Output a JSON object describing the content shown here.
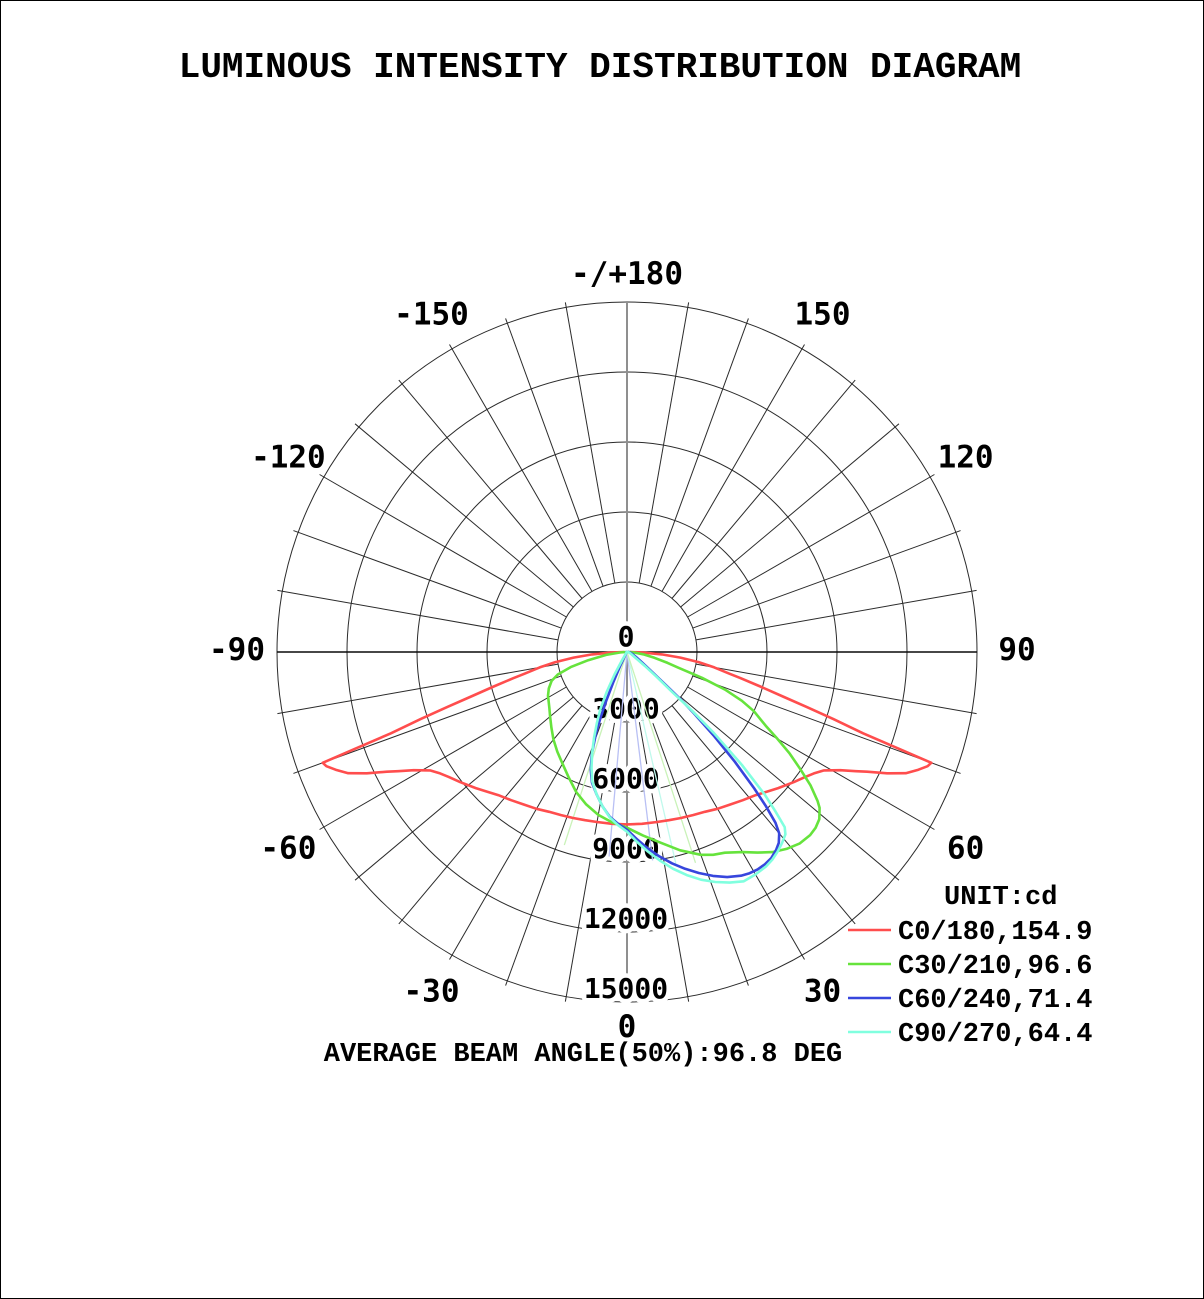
{
  "title": "LUMINOUS INTENSITY DISTRIBUTION DIAGRAM",
  "footer": "AVERAGE BEAM ANGLE(50%):96.8 DEG",
  "legend": {
    "unit": "UNIT:cd",
    "rows": [
      {
        "label": "C0/180,154.9",
        "color": "#ff4d4d"
      },
      {
        "label": "C30/210,96.6",
        "color": "#66e33c"
      },
      {
        "label": "C60/240,71.4",
        "color": "#3746dd"
      },
      {
        "label": "C90/270,64.4",
        "color": "#80ffdf"
      }
    ]
  },
  "chart_data": {
    "type": "polar_photometric",
    "title": "LUMINOUS INTENSITY DISTRIBUTION DIAGRAM",
    "unit": "cd",
    "average_beam_angle_50pct_deg": 96.8,
    "radial_ticks_cd": [
      0,
      3000,
      6000,
      9000,
      12000,
      15000
    ],
    "radial_max_cd": 15000,
    "grid_angle_step_deg": 10,
    "angle_labels": [
      {
        "text": "0",
        "deg": 0
      },
      {
        "text": "30",
        "deg": 30
      },
      {
        "text": "-30",
        "deg": -30
      },
      {
        "text": "60",
        "deg": 60
      },
      {
        "text": "-60",
        "deg": -60
      },
      {
        "text": "90",
        "deg": 90
      },
      {
        "text": "-90",
        "deg": -90
      },
      {
        "text": "120",
        "deg": 120
      },
      {
        "text": "-120",
        "deg": -120
      },
      {
        "text": "150",
        "deg": 150
      },
      {
        "text": "-150",
        "deg": -150
      },
      {
        "text": "-/+180",
        "deg": 180
      }
    ],
    "series": [
      {
        "name": "C0/180",
        "beam_angle_50pct_deg": 154.9,
        "color": "#ff4d4d",
        "points": [
          [
            -90,
            150
          ],
          [
            -88,
            700
          ],
          [
            -86,
            1500
          ],
          [
            -84,
            2300
          ],
          [
            -82,
            3100
          ],
          [
            -80,
            3800
          ],
          [
            -78,
            4500
          ],
          [
            -77,
            5000
          ],
          [
            -75.5,
            5900
          ],
          [
            -74,
            7000
          ],
          [
            -73,
            8050
          ],
          [
            -72,
            9300
          ],
          [
            -71,
            10700
          ],
          [
            -70.4,
            12400
          ],
          [
            -70,
            13880
          ],
          [
            -69.2,
            13780
          ],
          [
            -68,
            13470
          ],
          [
            -66.5,
            13030
          ],
          [
            -65,
            12300
          ],
          [
            -63.5,
            11500
          ],
          [
            -62.5,
            11060
          ],
          [
            -61,
            10450
          ],
          [
            -59,
            9850
          ],
          [
            -57,
            9550
          ],
          [
            -55,
            9330
          ],
          [
            -52,
            9060
          ],
          [
            -48,
            8720
          ],
          [
            -45,
            8470
          ],
          [
            -42,
            8250
          ],
          [
            -38,
            8060
          ],
          [
            -34,
            7890
          ],
          [
            -30,
            7760
          ],
          [
            -26,
            7620
          ],
          [
            -22,
            7540
          ],
          [
            -18,
            7480
          ],
          [
            -14,
            7430
          ],
          [
            -10,
            7400
          ],
          [
            -5,
            7390
          ],
          [
            0,
            7390
          ],
          [
            5,
            7390
          ],
          [
            10,
            7400
          ],
          [
            14,
            7430
          ],
          [
            18,
            7480
          ],
          [
            22,
            7540
          ],
          [
            26,
            7620
          ],
          [
            30,
            7760
          ],
          [
            34,
            7890
          ],
          [
            38,
            8060
          ],
          [
            42,
            8250
          ],
          [
            45,
            8470
          ],
          [
            48,
            8720
          ],
          [
            52,
            9060
          ],
          [
            55,
            9330
          ],
          [
            57,
            9550
          ],
          [
            59,
            9850
          ],
          [
            61,
            10450
          ],
          [
            62.5,
            11060
          ],
          [
            63.5,
            11500
          ],
          [
            65,
            12300
          ],
          [
            66.5,
            13030
          ],
          [
            68,
            13470
          ],
          [
            69.2,
            13780
          ],
          [
            70,
            13880
          ],
          [
            70.4,
            12400
          ],
          [
            71,
            10700
          ],
          [
            72,
            9300
          ],
          [
            73,
            8050
          ],
          [
            74,
            7000
          ],
          [
            75.5,
            5900
          ],
          [
            77,
            5000
          ],
          [
            78,
            4500
          ],
          [
            80,
            3800
          ],
          [
            82,
            3100
          ],
          [
            84,
            2300
          ],
          [
            86,
            1500
          ],
          [
            88,
            700
          ],
          [
            90,
            150
          ]
        ]
      },
      {
        "name": "C30/210",
        "beam_angle_50pct_deg": 96.6,
        "color": "#66e33c",
        "points": [
          [
            -90,
            80
          ],
          [
            -86,
            300
          ],
          [
            -82,
            900
          ],
          [
            -78,
            1700
          ],
          [
            -75,
            2500
          ],
          [
            -72,
            3120
          ],
          [
            -69,
            3460
          ],
          [
            -65,
            3700
          ],
          [
            -61,
            3870
          ],
          [
            -58,
            3960
          ],
          [
            -54,
            4110
          ],
          [
            -50,
            4300
          ],
          [
            -45,
            4580
          ],
          [
            -40,
            4900
          ],
          [
            -35,
            5210
          ],
          [
            -30,
            5530
          ],
          [
            -25,
            5920
          ],
          [
            -20,
            6380
          ],
          [
            -15,
            6760
          ],
          [
            -10,
            7090
          ],
          [
            -5,
            7330
          ],
          [
            0,
            7530
          ],
          [
            5,
            7900
          ],
          [
            10,
            8300
          ],
          [
            15,
            8800
          ],
          [
            20,
            9250
          ],
          [
            23,
            9440
          ],
          [
            26,
            9570
          ],
          [
            30,
            9900
          ],
          [
            33,
            10250
          ],
          [
            36,
            10600
          ],
          [
            39,
            10860
          ],
          [
            42,
            11050
          ],
          [
            45,
            11100
          ],
          [
            47,
            11050
          ],
          [
            49,
            10920
          ],
          [
            51,
            10620
          ],
          [
            52,
            10360
          ],
          [
            54,
            9720
          ],
          [
            56,
            8950
          ],
          [
            58,
            8220
          ],
          [
            60,
            7450
          ],
          [
            62,
            6730
          ],
          [
            65,
            6000
          ],
          [
            67,
            5350
          ],
          [
            69,
            4500
          ],
          [
            71,
            3400
          ],
          [
            73,
            2300
          ],
          [
            75,
            1800
          ],
          [
            78,
            1200
          ],
          [
            82,
            700
          ],
          [
            86,
            300
          ],
          [
            90,
            80
          ]
        ]
      },
      {
        "name": "C60/240",
        "beam_angle_50pct_deg": 71.4,
        "color": "#3746dd",
        "points": [
          [
            -90,
            20
          ],
          [
            -45,
            50
          ],
          [
            -32,
            90
          ],
          [
            -27,
            300
          ],
          [
            -26,
            700
          ],
          [
            -24.5,
            1400
          ],
          [
            -23,
            2300
          ],
          [
            -22,
            3000
          ],
          [
            -21,
            3700
          ],
          [
            -19,
            4650
          ],
          [
            -17,
            5300
          ],
          [
            -15,
            5800
          ],
          [
            -12,
            6250
          ],
          [
            -9,
            6700
          ],
          [
            -6,
            7100
          ],
          [
            -3,
            7370
          ],
          [
            0,
            7620
          ],
          [
            3,
            8030
          ],
          [
            6,
            8460
          ],
          [
            9,
            8870
          ],
          [
            12,
            9260
          ],
          [
            15,
            9620
          ],
          [
            18,
            9960
          ],
          [
            21,
            10280
          ],
          [
            24,
            10560
          ],
          [
            27,
            10760
          ],
          [
            29,
            10840
          ],
          [
            31,
            10870
          ],
          [
            33,
            10850
          ],
          [
            35,
            10780
          ],
          [
            37,
            10620
          ],
          [
            38.5,
            10450
          ],
          [
            40,
            10150
          ],
          [
            41,
            9700
          ],
          [
            42,
            8900
          ],
          [
            43,
            8000
          ],
          [
            44.5,
            6600
          ],
          [
            46,
            5200
          ],
          [
            47.5,
            3900
          ],
          [
            48.5,
            3100
          ],
          [
            50,
            2000
          ],
          [
            52,
            1250
          ],
          [
            55,
            800
          ],
          [
            60,
            480
          ],
          [
            65,
            320
          ],
          [
            70,
            230
          ],
          [
            75,
            170
          ],
          [
            80,
            130
          ],
          [
            85,
            90
          ],
          [
            90,
            60
          ]
        ]
      },
      {
        "name": "C90/270",
        "beam_angle_50pct_deg": 64.4,
        "color": "#80ffdf",
        "points": [
          [
            -90,
            15
          ],
          [
            -50,
            40
          ],
          [
            -36,
            80
          ],
          [
            -31,
            400
          ],
          [
            -29,
            1100
          ],
          [
            -27,
            1900
          ],
          [
            -25,
            2700
          ],
          [
            -23,
            3300
          ],
          [
            -21,
            3950
          ],
          [
            -19,
            4600
          ],
          [
            -17,
            5200
          ],
          [
            -15,
            5750
          ],
          [
            -12,
            6250
          ],
          [
            -9,
            6700
          ],
          [
            -6,
            7120
          ],
          [
            -3,
            7430
          ],
          [
            0,
            7700
          ],
          [
            3,
            8150
          ],
          [
            6,
            8600
          ],
          [
            9,
            9050
          ],
          [
            12,
            9500
          ],
          [
            15,
            9900
          ],
          [
            18,
            10260
          ],
          [
            21,
            10560
          ],
          [
            24,
            10820
          ],
          [
            27,
            11030
          ],
          [
            30,
            11010
          ],
          [
            33,
            10950
          ],
          [
            35,
            10860
          ],
          [
            37,
            10720
          ],
          [
            39,
            10550
          ],
          [
            41,
            10350
          ],
          [
            42,
            10100
          ],
          [
            43,
            9300
          ],
          [
            44,
            8500
          ],
          [
            45.5,
            6900
          ],
          [
            47,
            5100
          ],
          [
            48,
            3700
          ],
          [
            48.5,
            2600
          ],
          [
            50,
            1650
          ],
          [
            52,
            950
          ],
          [
            55,
            520
          ],
          [
            60,
            260
          ],
          [
            70,
            130
          ],
          [
            80,
            60
          ],
          [
            90,
            15
          ]
        ]
      }
    ],
    "aux_rays": [
      {
        "deg": -18,
        "cd": 8700,
        "color": "#c9f2b8"
      },
      {
        "deg": -5,
        "cd": 8800,
        "color": "#b9c0f4"
      },
      {
        "deg": 7,
        "cd": 9000,
        "color": "#b9c0f4"
      },
      {
        "deg": 13,
        "cd": 9300,
        "color": "#c0f9ec"
      },
      {
        "deg": 18,
        "cd": 9500,
        "color": "#c9f2b8"
      }
    ]
  }
}
